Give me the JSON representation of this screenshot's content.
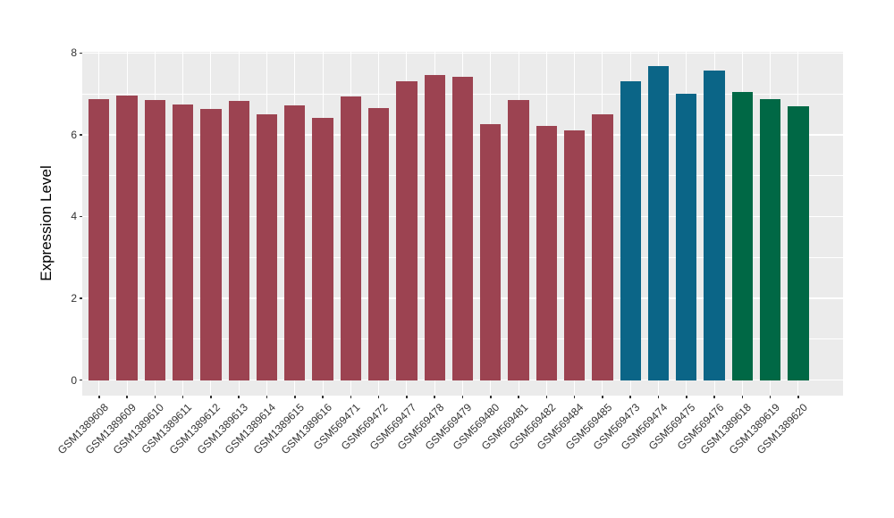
{
  "chart_data": {
    "type": "bar",
    "title": "",
    "xlabel": "",
    "ylabel": "Expression Level",
    "ylim": [
      0,
      8
    ],
    "yticks": [
      0,
      2,
      4,
      6,
      8
    ],
    "ytick_labels": [
      "0",
      "2",
      "4",
      "6",
      "8"
    ],
    "yticks_minor": [
      1,
      3,
      5,
      7
    ],
    "grid": "on",
    "legend": "none",
    "categories": [
      "GSM1389608",
      "GSM1389609",
      "GSM1389610",
      "GSM1389611",
      "GSM1389612",
      "GSM1389613",
      "GSM1389614",
      "GSM1389615",
      "GSM1389616",
      "GSM569471",
      "GSM569472",
      "GSM569477",
      "GSM569478",
      "GSM569479",
      "GSM569480",
      "GSM569481",
      "GSM569482",
      "GSM569484",
      "GSM569485",
      "GSM569473",
      "GSM569474",
      "GSM569475",
      "GSM569476",
      "GSM1389618",
      "GSM1389619",
      "GSM1389620"
    ],
    "values": [
      6.88,
      6.96,
      6.86,
      6.75,
      6.64,
      6.82,
      6.51,
      6.73,
      6.41,
      6.94,
      6.65,
      7.31,
      7.46,
      7.42,
      6.26,
      6.85,
      6.22,
      6.11,
      6.5,
      7.31,
      7.68,
      7.0,
      7.58,
      7.04,
      6.88,
      6.71
    ],
    "bar_groups": [
      0,
      0,
      0,
      0,
      0,
      0,
      0,
      0,
      0,
      0,
      0,
      0,
      0,
      0,
      0,
      0,
      0,
      0,
      0,
      1,
      1,
      1,
      1,
      2,
      2,
      2
    ],
    "palette": [
      "#9C4351",
      "#0B6587",
      "#006845"
    ],
    "panel_bg": "#EBEBEB",
    "grid_color": "#FFFFFF",
    "axis_text_color": "#333333",
    "axis_title_color": "#000000"
  }
}
